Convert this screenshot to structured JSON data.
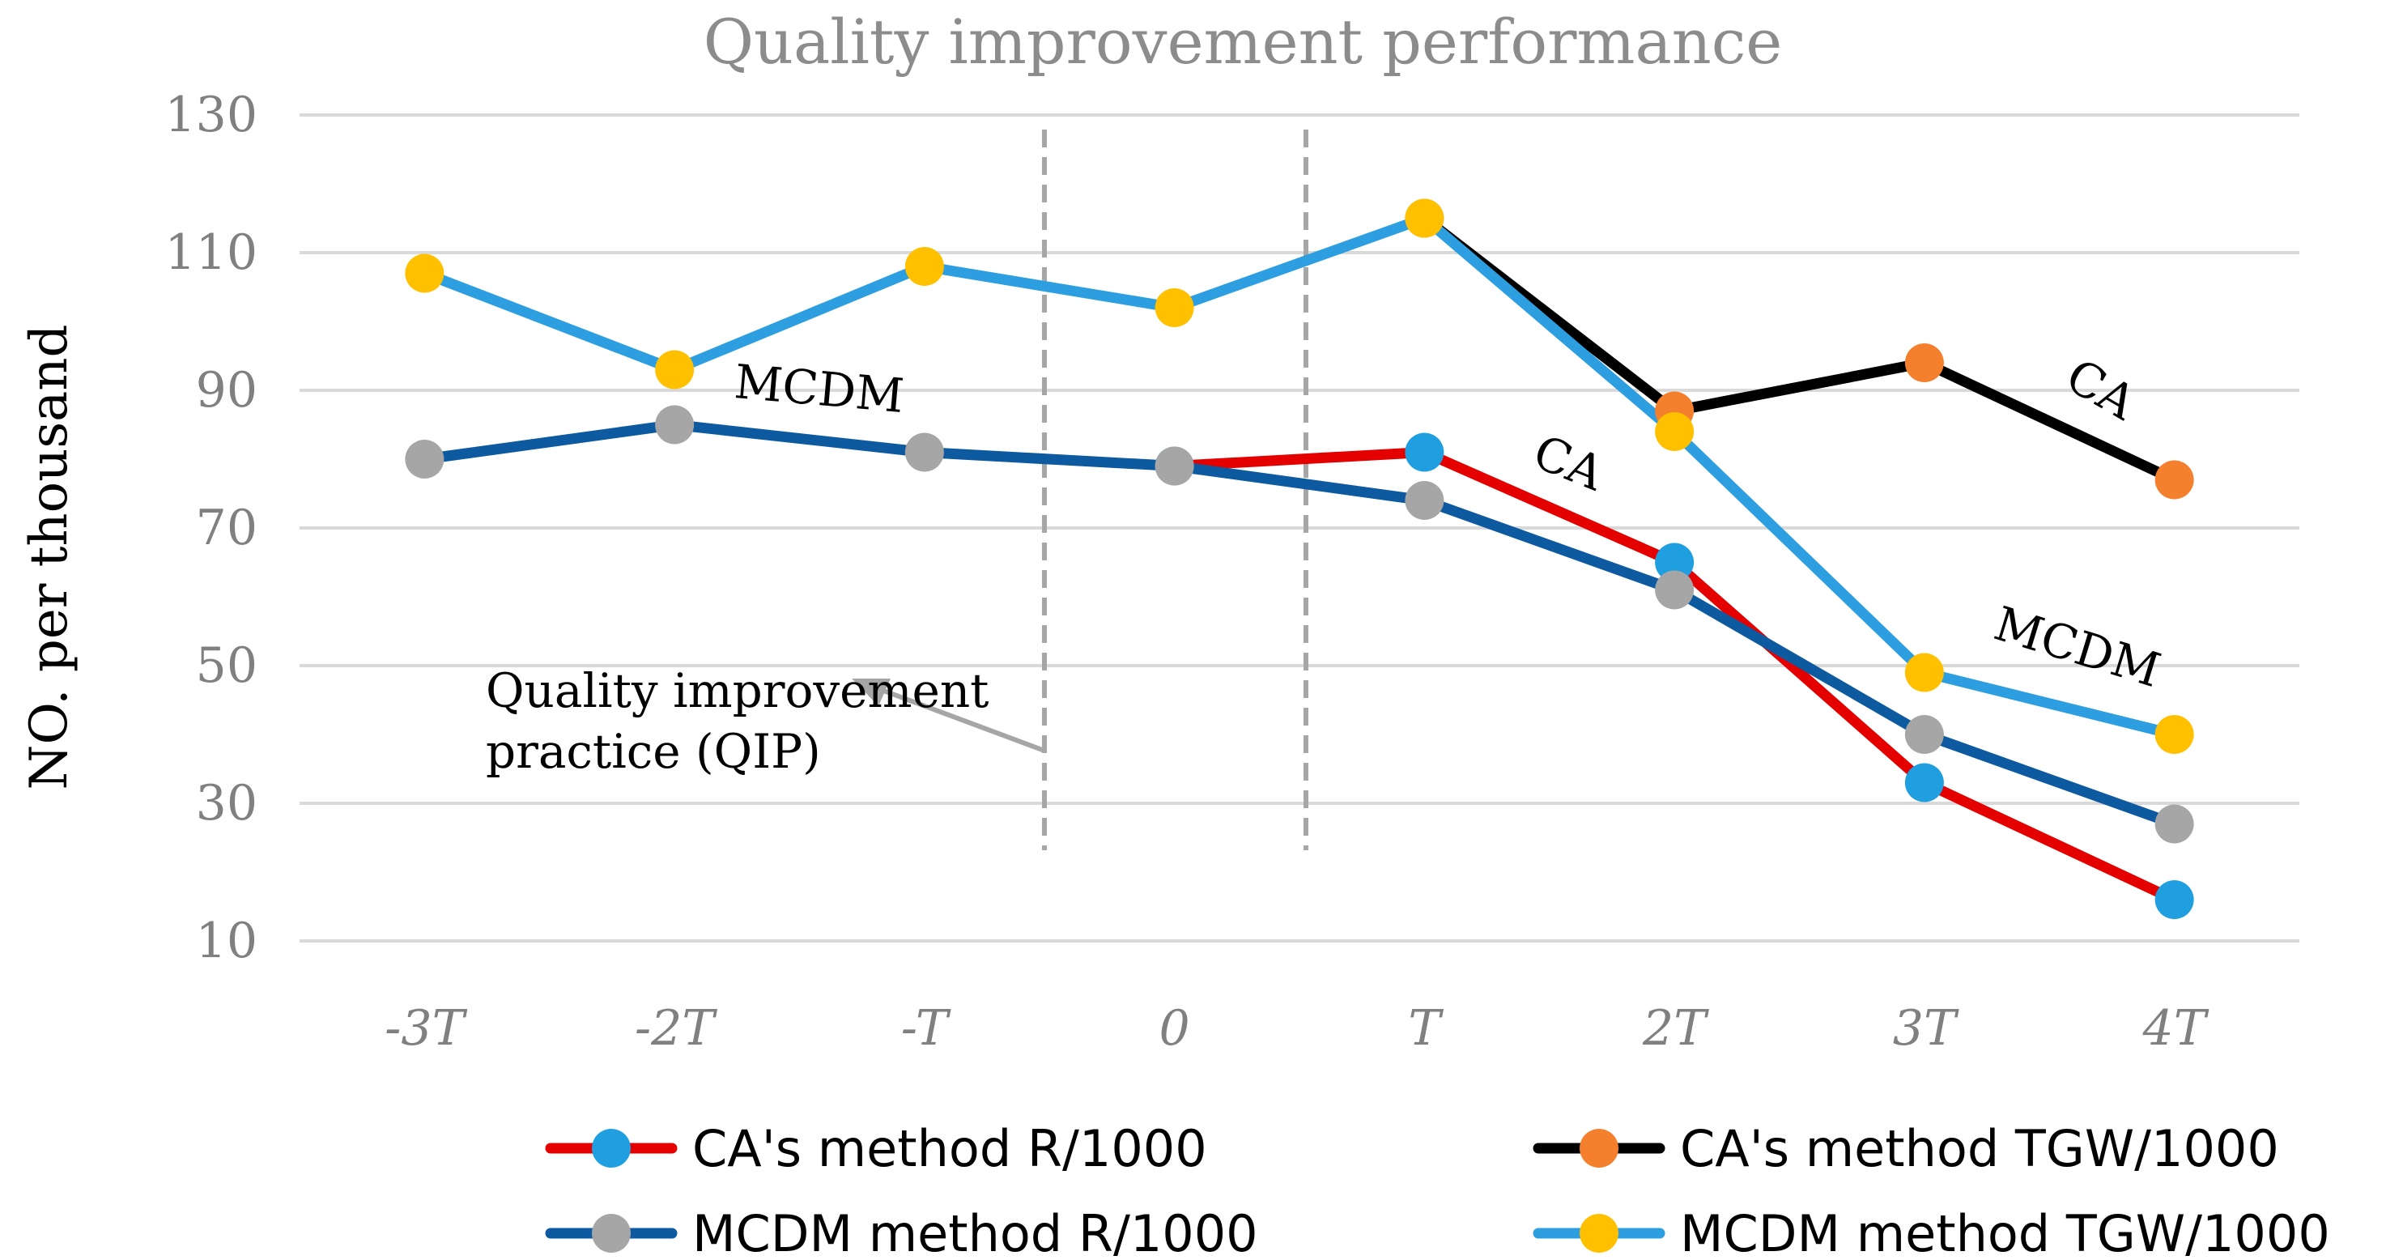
{
  "chart_data": {
    "type": "line",
    "title": "Quality improvement performance",
    "ylabel": "NO. per thousand",
    "xlabel": "",
    "ylim": [
      10,
      130
    ],
    "yticks": [
      10,
      30,
      50,
      70,
      90,
      110,
      130
    ],
    "grid": "horizontal",
    "categories": [
      "-3T",
      "-2T",
      "-T",
      "0",
      "T",
      "2T",
      "3T",
      "4T"
    ],
    "series": [
      {
        "name": "CA's method R/1000",
        "line_color": "#e50000",
        "marker_color": "#1f9ee0",
        "values": [
          null,
          null,
          null,
          79,
          81,
          65,
          33,
          16
        ]
      },
      {
        "name": "CA's method TGW/1000",
        "line_color": "#000000",
        "marker_color": "#f47f2c",
        "values": [
          null,
          null,
          null,
          null,
          115,
          87,
          94,
          77
        ]
      },
      {
        "name": "MCDM method R/1000",
        "line_color": "#0d5aa0",
        "marker_color": "#a6a6a6",
        "values": [
          80,
          85,
          81,
          79,
          74,
          61,
          40,
          27
        ]
      },
      {
        "name": "MCDM method TGW/1000",
        "line_color": "#2d9fe0",
        "marker_color": "#ffc000",
        "values": [
          107,
          93,
          108,
          102,
          115,
          84,
          49,
          40
        ]
      }
    ],
    "annotations": [
      {
        "text": "MCDM"
      },
      {
        "text": "CA"
      },
      {
        "text": "CA"
      },
      {
        "text": "MCDM"
      },
      {
        "text": "Quality improvement practice (QIP)",
        "line1": "Quality improvement",
        "line2": "practice (QIP)"
      }
    ],
    "legend_placement": "bottom"
  }
}
